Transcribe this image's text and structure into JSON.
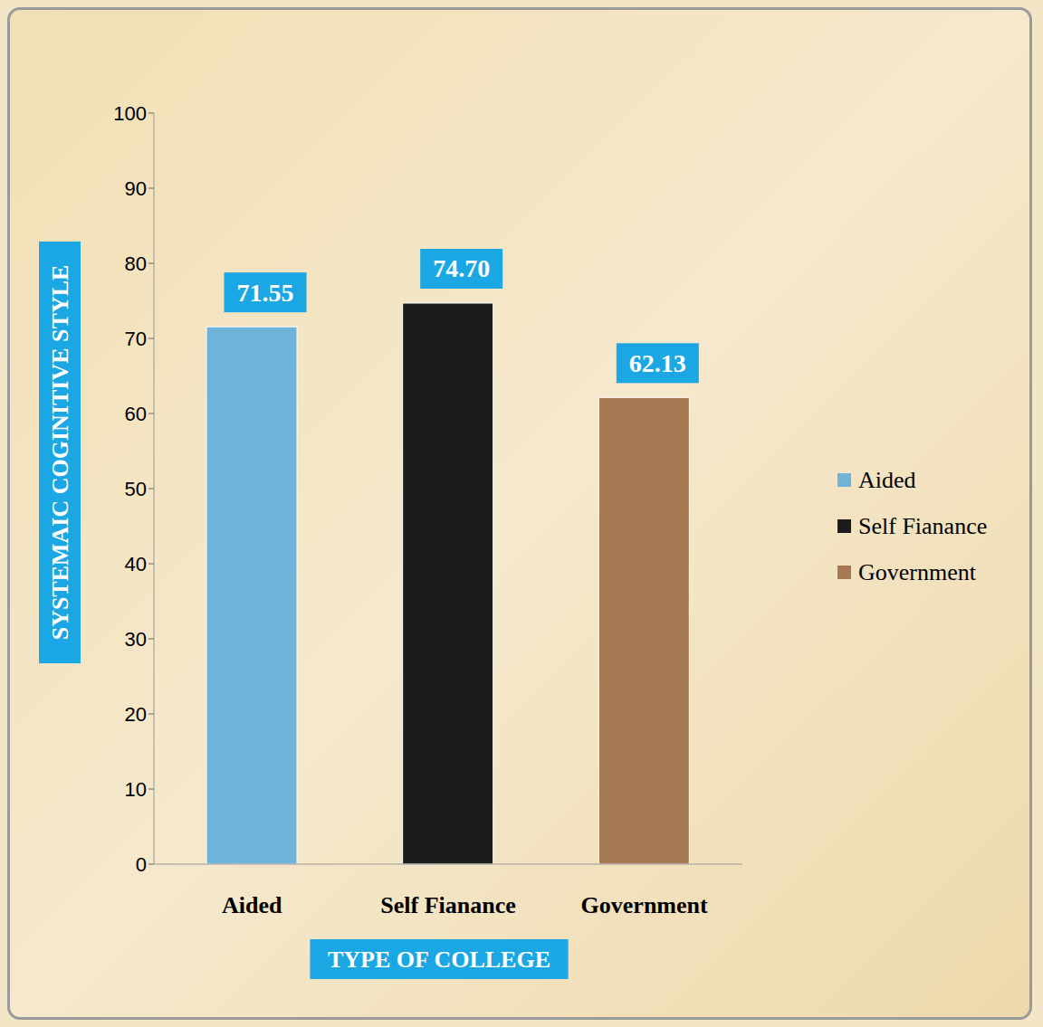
{
  "chart_data": {
    "type": "bar",
    "x_label": "TYPE OF COLLEGE",
    "y_label": "SYSTEMAIC COGINITIVE STYLE",
    "categories": [
      "Aided",
      "Self Fianance",
      "Government"
    ],
    "values": [
      71.55,
      74.7,
      62.13
    ],
    "value_labels": [
      "71.55",
      "74.70",
      "62.13"
    ],
    "colors": [
      "#6fb3d9",
      "#1c1c1c",
      "#a57a52"
    ],
    "ylim": [
      0,
      100
    ],
    "yticks": [
      0,
      10,
      20,
      30,
      40,
      50,
      60,
      70,
      80,
      90,
      100
    ],
    "grid": false,
    "legend": "right",
    "data_labels": true
  }
}
